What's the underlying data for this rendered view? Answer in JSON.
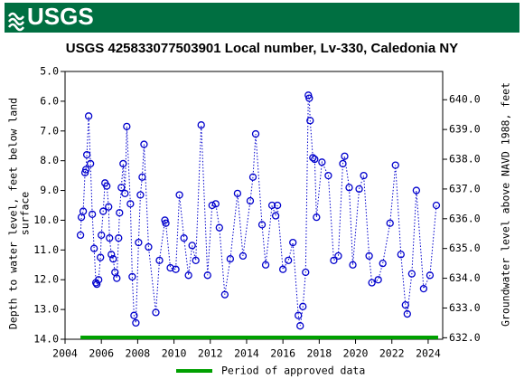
{
  "header": {
    "logo": "USGS"
  },
  "chart_data": {
    "type": "scatter",
    "title": "USGS 425833077503901 Local number, Lv-330, Caledonia NY",
    "ylabel_lines": [
      "Depth to water level, feet below land",
      "surface"
    ],
    "y2label": "Groundwater level above NAVD 1988, feet",
    "xlim": [
      2004,
      2024.8
    ],
    "xticks": [
      2004,
      2006,
      2008,
      2010,
      2012,
      2014,
      2016,
      2018,
      2020,
      2022,
      2024
    ],
    "ylim": [
      5,
      14
    ],
    "yinverted": true,
    "yticks": [
      {
        "value": 5,
        "label": "5.0"
      },
      {
        "value": 6,
        "label": "6.0"
      },
      {
        "value": 7,
        "label": "7.0"
      },
      {
        "value": 8,
        "label": "8.0"
      },
      {
        "value": 9,
        "label": "9.0"
      },
      {
        "value": 10,
        "label": "10.0"
      },
      {
        "value": 11,
        "label": "11.0"
      },
      {
        "value": 12,
        "label": "12.0"
      },
      {
        "value": 13,
        "label": "13.0"
      },
      {
        "value": 14,
        "label": "14.0"
      }
    ],
    "y2lim": [
      631.95,
      640.95
    ],
    "y2ticks": [
      {
        "value": 632,
        "label": "632.0"
      },
      {
        "value": 633,
        "label": "633.0"
      },
      {
        "value": 634,
        "label": "634.0"
      },
      {
        "value": 635,
        "label": "635.0"
      },
      {
        "value": 636,
        "label": "636.0"
      },
      {
        "value": 637,
        "label": "637.0"
      },
      {
        "value": 638,
        "label": "638.0"
      },
      {
        "value": 639,
        "label": "639.0"
      },
      {
        "value": 640,
        "label": "640.0"
      }
    ],
    "series": [
      {
        "color": "#0000cc",
        "x": [
          2004.85,
          2004.9,
          2005.0,
          2005.1,
          2005.15,
          2005.2,
          2005.3,
          2005.4,
          2005.5,
          2005.6,
          2005.7,
          2005.75,
          2005.85,
          2005.95,
          2006.0,
          2006.1,
          2006.2,
          2006.3,
          2006.4,
          2006.45,
          2006.55,
          2006.65,
          2006.75,
          2006.85,
          2006.95,
          2007.0,
          2007.1,
          2007.2,
          2007.3,
          2007.4,
          2007.6,
          2007.7,
          2007.8,
          2007.9,
          2008.05,
          2008.15,
          2008.25,
          2008.35,
          2008.6,
          2009.0,
          2009.2,
          2009.5,
          2009.55,
          2009.8,
          2010.1,
          2010.3,
          2010.55,
          2010.8,
          2011.0,
          2011.2,
          2011.5,
          2011.85,
          2012.1,
          2012.3,
          2012.5,
          2012.8,
          2013.1,
          2013.5,
          2013.8,
          2014.2,
          2014.35,
          2014.5,
          2014.85,
          2015.05,
          2015.4,
          2015.6,
          2015.7,
          2016.0,
          2016.3,
          2016.55,
          2016.85,
          2016.95,
          2017.1,
          2017.25,
          2017.4,
          2017.45,
          2017.5,
          2017.65,
          2017.75,
          2017.85,
          2018.15,
          2018.5,
          2018.8,
          2019.05,
          2019.3,
          2019.4,
          2019.65,
          2019.85,
          2020.2,
          2020.45,
          2020.75,
          2020.9,
          2021.25,
          2021.5,
          2021.9,
          2022.2,
          2022.5,
          2022.75,
          2022.85,
          2023.1,
          2023.35,
          2023.75,
          2024.1,
          2024.45
        ],
        "values": [
          10.5,
          9.9,
          9.7,
          8.4,
          8.3,
          7.8,
          6.5,
          8.1,
          9.8,
          10.95,
          12.1,
          12.15,
          12.0,
          11.25,
          10.5,
          9.7,
          8.75,
          8.85,
          9.55,
          10.6,
          11.15,
          11.3,
          11.75,
          11.95,
          10.6,
          9.75,
          8.9,
          8.1,
          9.1,
          6.85,
          9.45,
          11.9,
          13.2,
          13.45,
          10.75,
          9.15,
          8.55,
          7.45,
          10.9,
          13.1,
          11.35,
          10.0,
          10.1,
          11.6,
          11.65,
          9.15,
          10.6,
          11.85,
          10.85,
          11.35,
          6.8,
          11.85,
          9.5,
          9.45,
          10.25,
          12.5,
          11.3,
          9.1,
          11.2,
          9.35,
          8.55,
          7.1,
          10.15,
          11.5,
          9.5,
          9.85,
          9.5,
          11.65,
          11.35,
          10.75,
          13.2,
          13.55,
          12.9,
          11.75,
          5.8,
          5.9,
          6.65,
          7.9,
          7.95,
          9.9,
          8.05,
          8.5,
          11.35,
          11.2,
          8.1,
          7.85,
          8.9,
          11.5,
          8.95,
          8.5,
          11.2,
          12.1,
          12.0,
          11.45,
          10.1,
          8.15,
          11.15,
          12.85,
          13.15,
          11.8,
          9.0,
          12.3,
          11.85,
          9.5
        ]
      }
    ],
    "approved_period": {
      "name": "Period of approved data",
      "color": "#00a000",
      "x": [
        2004.85,
        2024.55
      ]
    }
  }
}
